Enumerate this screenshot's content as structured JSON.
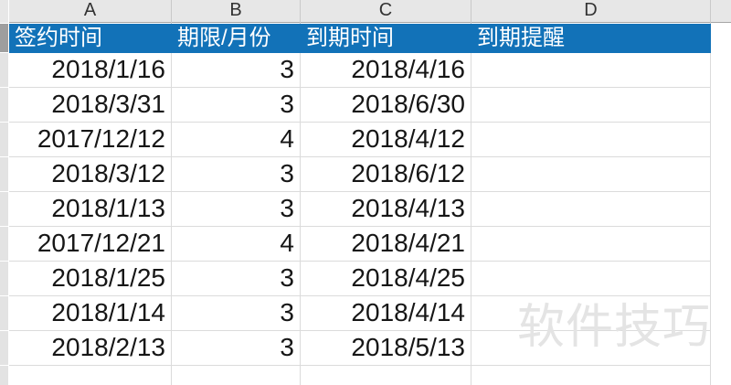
{
  "watermark": {
    "text": "软件技巧"
  },
  "columns": {
    "letters": [
      "A",
      "B",
      "C",
      "D"
    ]
  },
  "table": {
    "headers": [
      "签约时间",
      "期限/月份",
      "到期时间",
      "到期提醒"
    ],
    "rows": [
      {
        "signing": "2018/1/16",
        "term": "3",
        "expiry": "2018/4/16",
        "reminder": ""
      },
      {
        "signing": "2018/3/31",
        "term": "3",
        "expiry": "2018/6/30",
        "reminder": ""
      },
      {
        "signing": "2017/12/12",
        "term": "4",
        "expiry": "2018/4/12",
        "reminder": ""
      },
      {
        "signing": "2018/3/12",
        "term": "3",
        "expiry": "2018/6/12",
        "reminder": ""
      },
      {
        "signing": "2018/1/13",
        "term": "3",
        "expiry": "2018/4/13",
        "reminder": ""
      },
      {
        "signing": "2017/12/21",
        "term": "4",
        "expiry": "2018/4/21",
        "reminder": ""
      },
      {
        "signing": "2018/1/25",
        "term": "3",
        "expiry": "2018/4/25",
        "reminder": ""
      },
      {
        "signing": "2018/1/14",
        "term": "3",
        "expiry": "2018/4/14",
        "reminder": ""
      },
      {
        "signing": "2018/2/13",
        "term": "3",
        "expiry": "2018/5/13",
        "reminder": ""
      }
    ]
  },
  "colors": {
    "header_blue": "#1272B8",
    "header_text": "#FFFFFF",
    "gridline": "#DBDBDB",
    "col_header_bg": "#E7E7E7",
    "col_header_border": "#A6A6A6",
    "col_header_text": "#333333",
    "row_strip": "#E3E3E3",
    "row_strip_active": "#9E9E9E",
    "cell_text": "#161616",
    "watermark": "#E4E4E4"
  }
}
